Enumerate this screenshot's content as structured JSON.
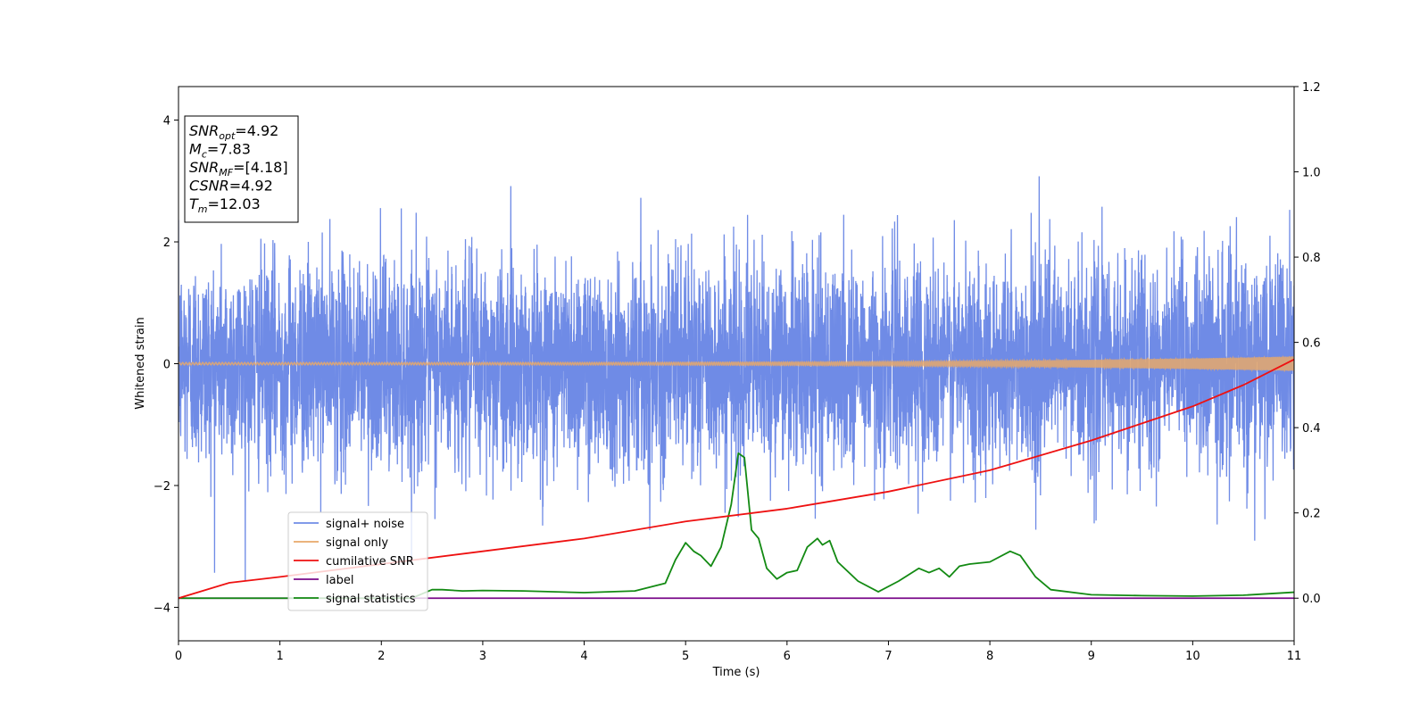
{
  "chart_data": {
    "type": "line",
    "xlabel": "Time (s)",
    "ylabel": "Whitened strain",
    "xlim": [
      0,
      11
    ],
    "ylim": [
      -4.55,
      4.55
    ],
    "y2lim": [
      -0.1,
      1.2
    ],
    "x_ticks": [
      0,
      1,
      2,
      3,
      4,
      5,
      6,
      7,
      8,
      9,
      10,
      11
    ],
    "y_ticks": [
      -4,
      -2,
      0,
      2,
      4
    ],
    "y2_ticks": [
      "0.0",
      "0.2",
      "0.4",
      "0.6",
      "0.8",
      "1.0",
      "1.2"
    ],
    "legend_position": "lower-left",
    "annotation": {
      "lines": [
        {
          "base": "SNR",
          "sub": "opt",
          "value": "=4.92"
        },
        {
          "base": "M",
          "sub": "c",
          "value": "=7.83"
        },
        {
          "base": "SNR",
          "sub": "MF",
          "value": "=[4.18]"
        },
        {
          "base": "CSNR",
          "sub": "",
          "value": "=4.92"
        },
        {
          "base": "T",
          "sub": "m",
          "value": "=12.03"
        }
      ]
    },
    "series": [
      {
        "name": "signal+ noise",
        "color": "#6f8be6",
        "axis": "left",
        "kind": "noise",
        "noise_std": 0.85,
        "noise_max": 4.1
      },
      {
        "name": "signal only",
        "color": "#e8a86a",
        "axis": "left",
        "kind": "chirp",
        "amplitude_start": 0.02,
        "amplitude_end": 0.12
      },
      {
        "name": "cumilative SNR",
        "color": "#ee1111",
        "axis": "right",
        "x": [
          0,
          0.5,
          1,
          2,
          3,
          4,
          5,
          6,
          7,
          8,
          9,
          9.5,
          10,
          10.5,
          11
        ],
        "y": [
          0.0,
          0.036,
          0.05,
          0.08,
          0.11,
          0.14,
          0.18,
          0.21,
          0.25,
          0.3,
          0.37,
          0.41,
          0.45,
          0.5,
          0.56
        ]
      },
      {
        "name": "label",
        "color": "#7a0a8a",
        "axis": "right",
        "x": [
          0,
          11
        ],
        "y": [
          0,
          0
        ]
      },
      {
        "name": "signal statistics",
        "color": "#138a13",
        "axis": "right",
        "x": [
          0,
          2.3,
          2.5,
          2.6,
          2.8,
          3.0,
          3.4,
          4.0,
          4.5,
          4.8,
          4.9,
          5.0,
          5.08,
          5.15,
          5.25,
          5.35,
          5.45,
          5.52,
          5.58,
          5.65,
          5.72,
          5.8,
          5.9,
          6.0,
          6.1,
          6.2,
          6.3,
          6.35,
          6.42,
          6.5,
          6.7,
          6.9,
          7.1,
          7.3,
          7.4,
          7.5,
          7.6,
          7.7,
          7.8,
          8.0,
          8.2,
          8.3,
          8.45,
          8.6,
          9.0,
          9.5,
          10.0,
          10.5,
          11
        ],
        "y": [
          0.0,
          0.0,
          0.02,
          0.02,
          0.017,
          0.018,
          0.017,
          0.013,
          0.017,
          0.035,
          0.09,
          0.13,
          0.11,
          0.1,
          0.075,
          0.12,
          0.22,
          0.34,
          0.33,
          0.16,
          0.14,
          0.07,
          0.045,
          0.06,
          0.065,
          0.12,
          0.14,
          0.125,
          0.135,
          0.085,
          0.04,
          0.015,
          0.04,
          0.07,
          0.06,
          0.07,
          0.05,
          0.075,
          0.08,
          0.085,
          0.11,
          0.1,
          0.05,
          0.02,
          0.008,
          0.006,
          0.005,
          0.007,
          0.014
        ]
      }
    ]
  }
}
